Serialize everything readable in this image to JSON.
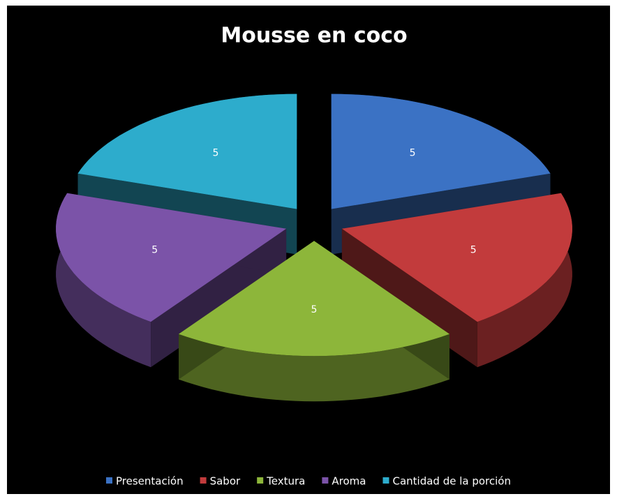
{
  "chart_data": {
    "type": "pie3d",
    "title": "Mousse en coco",
    "categories": [
      "Presentación",
      "Sabor",
      "Textura",
      "Aroma",
      "Cantidad de la porción"
    ],
    "values": [
      5,
      5,
      5,
      5,
      5
    ],
    "colors": [
      "#3b72c4",
      "#c23b3c",
      "#8db63a",
      "#7b53a8",
      "#2daccc"
    ],
    "legend": "bottom"
  }
}
